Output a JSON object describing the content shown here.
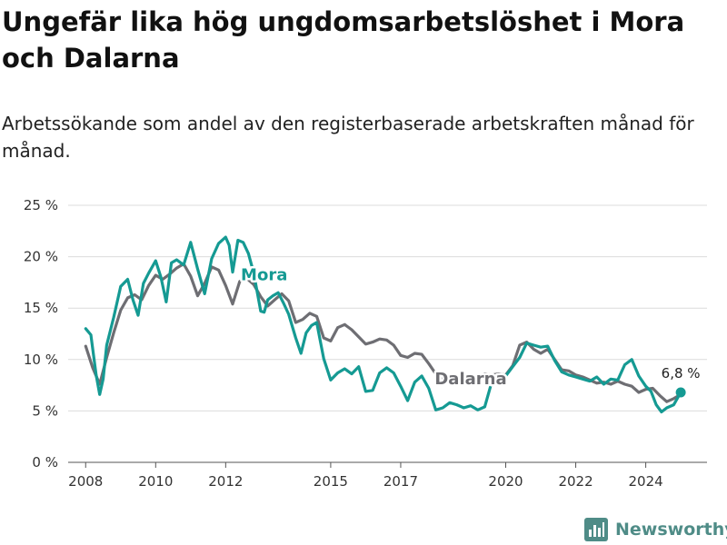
{
  "header": {
    "title": "Ungefär lika hög ungdomsarbetslöshet i Mora och Dalarna",
    "subtitle": "Arbetssökande som andel av den registerbaserade arbetskraften månad för månad."
  },
  "brand": {
    "name": "Newsworthy",
    "icon": "bar-chart-logo-icon",
    "color": "#4f8c87"
  },
  "chart_data": {
    "type": "line",
    "ylim": [
      0,
      25
    ],
    "xlim": [
      2007.5,
      2025.75
    ],
    "y_ticks": [
      {
        "value": 0,
        "label": "0 %"
      },
      {
        "value": 5,
        "label": "5 %"
      },
      {
        "value": 10,
        "label": "10 %"
      },
      {
        "value": 15,
        "label": "15 %"
      },
      {
        "value": 20,
        "label": "20 %"
      },
      {
        "value": 25,
        "label": "25 %"
      }
    ],
    "x_ticks": [
      {
        "value": 2008,
        "label": "2008"
      },
      {
        "value": 2010,
        "label": "2010"
      },
      {
        "value": 2012,
        "label": "2012"
      },
      {
        "value": 2015,
        "label": "2015"
      },
      {
        "value": 2017,
        "label": "2017"
      },
      {
        "value": 2020,
        "label": "2020"
      },
      {
        "value": 2022,
        "label": "2022"
      },
      {
        "value": 2024,
        "label": "2024"
      }
    ],
    "grid": true,
    "end_label": "6,8 %",
    "series": [
      {
        "name": "Dalarna",
        "color": "#6e6e73",
        "label_at": [
          2019.0,
          7.6
        ],
        "x": [
          2008.0,
          2008.2,
          2008.4,
          2008.6,
          2008.8,
          2009.0,
          2009.2,
          2009.4,
          2009.6,
          2009.8,
          2010.0,
          2010.2,
          2010.4,
          2010.6,
          2010.8,
          2011.0,
          2011.2,
          2011.4,
          2011.6,
          2011.8,
          2012.0,
          2012.2,
          2012.4,
          2012.6,
          2012.8,
          2013.0,
          2013.2,
          2013.4,
          2013.6,
          2013.8,
          2014.0,
          2014.2,
          2014.4,
          2014.6,
          2014.8,
          2015.0,
          2015.2,
          2015.4,
          2015.6,
          2015.8,
          2016.0,
          2016.2,
          2016.4,
          2016.6,
          2016.8,
          2017.0,
          2017.2,
          2017.4,
          2017.6,
          2017.8,
          2018.0,
          2018.2,
          2018.4,
          2018.6,
          2018.8,
          2019.0,
          2019.2,
          2019.4,
          2019.6,
          2019.8,
          2020.0,
          2020.2,
          2020.4,
          2020.6,
          2020.8,
          2021.0,
          2021.2,
          2021.4,
          2021.6,
          2021.8,
          2022.0,
          2022.2,
          2022.4,
          2022.6,
          2022.8,
          2023.0,
          2023.2,
          2023.4,
          2023.6,
          2023.8,
          2024.0,
          2024.2,
          2024.4,
          2024.6,
          2024.8,
          2025.0
        ],
        "y": [
          11.3,
          9.2,
          7.6,
          10.2,
          12.6,
          14.8,
          16.0,
          16.3,
          15.8,
          17.2,
          18.2,
          17.8,
          18.3,
          18.9,
          19.3,
          18.1,
          16.2,
          17.4,
          19.0,
          18.7,
          17.2,
          15.4,
          17.6,
          17.9,
          17.3,
          16.1,
          15.2,
          15.8,
          16.4,
          15.7,
          13.6,
          13.9,
          14.5,
          14.2,
          12.1,
          11.8,
          13.1,
          13.4,
          12.9,
          12.2,
          11.5,
          11.7,
          12.0,
          11.9,
          11.4,
          10.4,
          10.2,
          10.6,
          10.5,
          9.6,
          8.6,
          8.2,
          8.4,
          8.3,
          8.0,
          8.1,
          8.4,
          8.6,
          8.5,
          8.6,
          8.5,
          9.4,
          11.4,
          11.7,
          11.0,
          10.6,
          11.0,
          10.0,
          9.0,
          8.9,
          8.5,
          8.3,
          8.0,
          7.7,
          7.8,
          7.6,
          7.9,
          7.6,
          7.4,
          6.8,
          7.1,
          7.2,
          6.5,
          5.9,
          6.2,
          6.6
        ]
      },
      {
        "name": "Mora",
        "color": "#159a93",
        "label_at": [
          2013.1,
          17.7
        ],
        "x": [
          2008.0,
          2008.15,
          2008.3,
          2008.4,
          2008.5,
          2008.6,
          2008.8,
          2009.0,
          2009.2,
          2009.35,
          2009.5,
          2009.65,
          2009.8,
          2010.0,
          2010.15,
          2010.3,
          2010.45,
          2010.6,
          2010.8,
          2011.0,
          2011.2,
          2011.4,
          2011.6,
          2011.8,
          2012.0,
          2012.1,
          2012.2,
          2012.35,
          2012.5,
          2012.65,
          2012.8,
          2013.0,
          2013.1,
          2013.2,
          2013.35,
          2013.5,
          2013.65,
          2013.8,
          2014.0,
          2014.15,
          2014.3,
          2014.45,
          2014.6,
          2014.8,
          2015.0,
          2015.2,
          2015.4,
          2015.6,
          2015.8,
          2016.0,
          2016.2,
          2016.4,
          2016.6,
          2016.8,
          2017.0,
          2017.2,
          2017.4,
          2017.6,
          2017.8,
          2018.0,
          2018.2,
          2018.4,
          2018.6,
          2018.8,
          2019.0,
          2019.2,
          2019.4,
          2019.6,
          2019.8,
          2020.0,
          2020.2,
          2020.4,
          2020.6,
          2020.8,
          2021.0,
          2021.2,
          2021.4,
          2021.6,
          2021.8,
          2022.0,
          2022.2,
          2022.4,
          2022.6,
          2022.8,
          2023.0,
          2023.2,
          2023.4,
          2023.6,
          2023.8,
          2024.0,
          2024.15,
          2024.3,
          2024.45,
          2024.6,
          2024.8,
          2025.0
        ],
        "y": [
          13.0,
          12.4,
          8.5,
          6.6,
          8.1,
          11.4,
          14.1,
          17.1,
          17.8,
          15.8,
          14.3,
          17.4,
          18.4,
          19.6,
          18.0,
          15.6,
          19.4,
          19.7,
          19.2,
          21.4,
          18.8,
          16.4,
          19.8,
          21.3,
          21.9,
          21.1,
          18.5,
          21.6,
          21.4,
          20.3,
          18.4,
          14.7,
          14.6,
          15.8,
          16.2,
          16.5,
          15.5,
          14.4,
          12.1,
          10.6,
          12.6,
          13.3,
          13.6,
          10.1,
          8.0,
          8.7,
          9.1,
          8.6,
          9.3,
          6.9,
          7.0,
          8.7,
          9.2,
          8.7,
          7.4,
          6.0,
          7.8,
          8.4,
          7.2,
          5.1,
          5.3,
          5.8,
          5.6,
          5.3,
          5.5,
          5.1,
          5.4,
          7.8,
          8.3,
          8.4,
          9.3,
          10.2,
          11.6,
          11.4,
          11.2,
          11.3,
          9.9,
          8.8,
          8.5,
          8.3,
          8.1,
          7.9,
          8.3,
          7.6,
          8.1,
          8.0,
          9.5,
          10.0,
          8.4,
          7.4,
          6.9,
          5.6,
          4.9,
          5.3,
          5.6,
          6.8
        ]
      }
    ]
  }
}
